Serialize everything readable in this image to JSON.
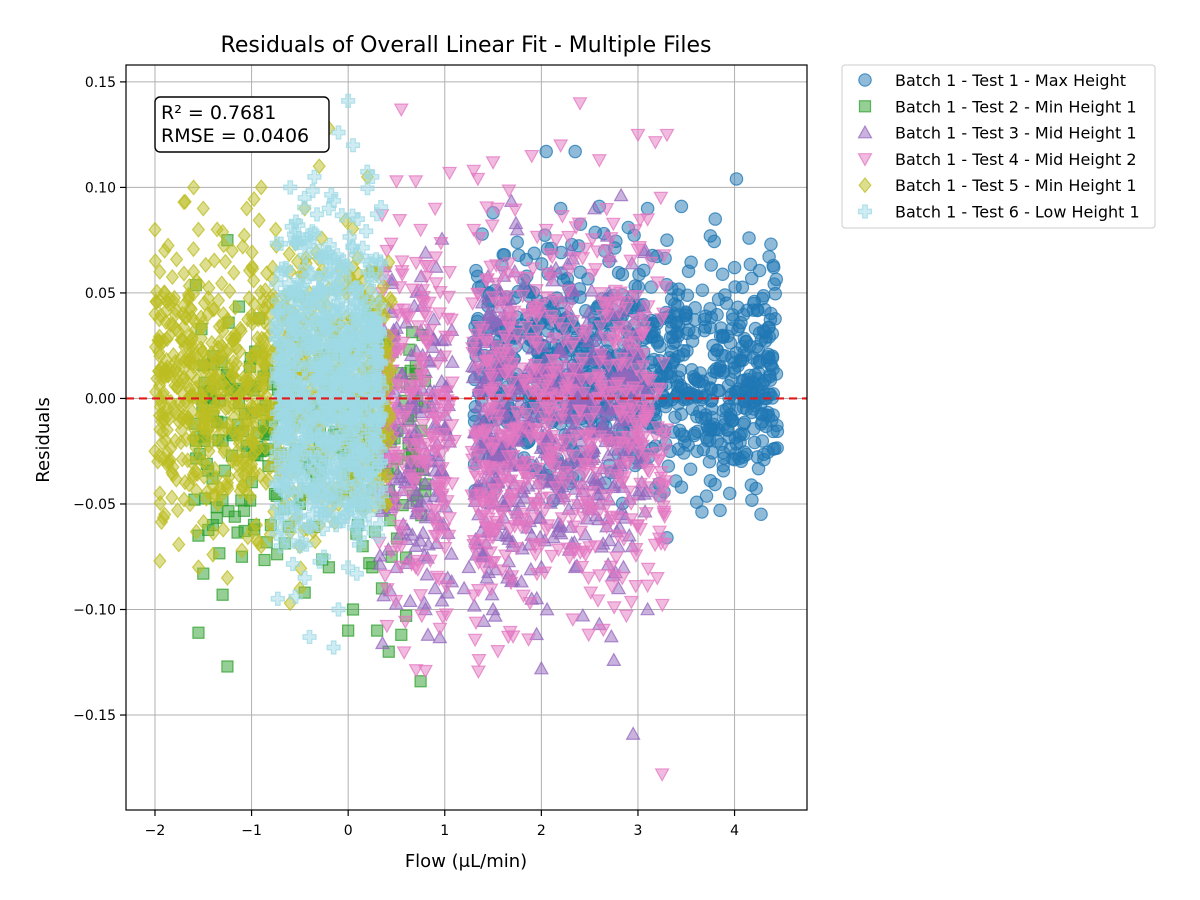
{
  "chart_data": {
    "type": "scatter",
    "title": "Residuals of Overall Linear Fit - Multiple Files",
    "xlabel": "Flow (μL/min)",
    "ylabel": "Residuals",
    "xlim": [
      -2.3,
      4.75
    ],
    "ylim": [
      -0.195,
      0.158
    ],
    "x_ticks": [
      -2,
      -1,
      0,
      1,
      2,
      3,
      4
    ],
    "x_tick_labels": [
      "−2",
      "−1",
      "0",
      "1",
      "2",
      "3",
      "4"
    ],
    "y_ticks": [
      0.15,
      0.1,
      0.05,
      0.0,
      -0.05,
      -0.1,
      -0.15
    ],
    "y_tick_labels": [
      "0.15",
      "0.10",
      "0.05",
      "0.00",
      "−0.05",
      "−0.10",
      "−0.15"
    ],
    "grid": true,
    "legend_position": "outside-top-right",
    "reference_line": {
      "y": 0,
      "color": "#e31a1c",
      "style": "dashed"
    },
    "annotation": {
      "r2": "R² = 0.7681",
      "rmse": "RMSE = 0.0406"
    },
    "series": [
      {
        "name": "Batch 1 - Test 1 - Max Height",
        "marker": "circle",
        "color": "#1f77b4",
        "x_range": [
          1.3,
          4.45
        ],
        "y_range": [
          -0.067,
          0.117
        ],
        "points": [
          [
            4.02,
            0.104
          ],
          [
            2.05,
            0.117
          ],
          [
            2.35,
            0.117
          ],
          [
            3.45,
            0.091
          ],
          [
            3.8,
            0.085
          ],
          [
            4.15,
            0.076
          ],
          [
            3.75,
            0.077
          ],
          [
            4.4,
            0.063
          ],
          [
            4.0,
            0.062
          ],
          [
            3.9,
            0.049
          ],
          [
            4.2,
            0.045
          ],
          [
            3.7,
            0.039
          ],
          [
            4.3,
            0.032
          ],
          [
            4.1,
            0.022
          ],
          [
            3.85,
            0.015
          ],
          [
            4.25,
            0.012
          ],
          [
            3.75,
            0.005
          ],
          [
            4.2,
            -0.005
          ],
          [
            3.72,
            -0.02
          ],
          [
            3.74,
            -0.03
          ],
          [
            3.75,
            -0.039
          ],
          [
            4.4,
            -0.024
          ],
          [
            4.0,
            -0.029
          ],
          [
            3.95,
            -0.045
          ],
          [
            3.85,
            -0.053
          ],
          [
            3.3,
            -0.066
          ],
          [
            3.45,
            -0.042
          ],
          [
            3.42,
            -0.024
          ],
          [
            3.45,
            0.005
          ],
          [
            3.42,
            0.02
          ],
          [
            3.4,
            0.036
          ],
          [
            3.35,
            0.052
          ],
          [
            3.1,
            0.09
          ],
          [
            3.3,
            0.075
          ],
          [
            2.9,
            0.081
          ],
          [
            2.7,
            0.065
          ],
          [
            2.6,
            0.091
          ],
          [
            2.2,
            0.09
          ],
          [
            2.75,
            0.042
          ],
          [
            3.0,
            0.03
          ],
          [
            2.9,
            0.02
          ],
          [
            1.5,
            0.088
          ],
          [
            1.75,
            0.074
          ],
          [
            2.4,
            0.048
          ],
          [
            2.25,
            0.02
          ]
        ]
      },
      {
        "name": "Batch 1 - Test 2 - Min Height 1",
        "marker": "square",
        "color": "#2ca02c",
        "x_range": [
          -1.6,
          0.8
        ],
        "y_range": [
          -0.135,
          0.075
        ],
        "points": [
          [
            -1.55,
            -0.111
          ],
          [
            -1.25,
            -0.127
          ],
          [
            0.75,
            -0.134
          ],
          [
            0.42,
            -0.12
          ],
          [
            -1.3,
            -0.093
          ],
          [
            -1.5,
            -0.083
          ],
          [
            -0.45,
            -0.092
          ],
          [
            0.0,
            -0.11
          ],
          [
            0.55,
            -0.112
          ],
          [
            0.6,
            -0.103
          ],
          [
            -1.55,
            -0.065
          ],
          [
            -1.4,
            -0.06
          ],
          [
            -1.3,
            -0.02
          ],
          [
            -1.4,
            0.02
          ],
          [
            -1.25,
            0.075
          ],
          [
            0.25,
            0.06
          ],
          [
            0.2,
            0.04
          ],
          [
            0.25,
            0.01
          ],
          [
            0.3,
            -0.03
          ],
          [
            0.15,
            -0.07
          ],
          [
            0.25,
            -0.08
          ],
          [
            0.35,
            -0.09
          ],
          [
            0.05,
            -0.1
          ],
          [
            0.45,
            -0.075
          ],
          [
            -0.5,
            -0.05
          ],
          [
            -1.1,
            -0.075
          ],
          [
            -0.8,
            -0.06
          ],
          [
            -0.2,
            -0.08
          ],
          [
            0.1,
            -0.06
          ],
          [
            0.3,
            -0.11
          ]
        ]
      },
      {
        "name": "Batch 1 - Test 3 - Mid Height 1",
        "marker": "triangle-up",
        "color": "#9467bd",
        "x_range": [
          0.3,
          3.1
        ],
        "y_range": [
          -0.16,
          0.1
        ],
        "points": [
          [
            2.95,
            -0.159
          ],
          [
            2.0,
            -0.128
          ],
          [
            2.75,
            -0.124
          ],
          [
            3.1,
            -0.1
          ],
          [
            2.6,
            -0.107
          ],
          [
            1.9,
            -0.095
          ],
          [
            1.5,
            -0.1
          ],
          [
            1.2,
            -0.09
          ],
          [
            0.8,
            -0.1
          ],
          [
            0.9,
            -0.09
          ],
          [
            2.35,
            -0.08
          ],
          [
            2.85,
            -0.08
          ],
          [
            1.7,
            -0.07
          ],
          [
            2.2,
            -0.06
          ],
          [
            2.6,
            -0.05
          ],
          [
            1.55,
            -0.04
          ],
          [
            1.85,
            -0.03
          ],
          [
            2.4,
            -0.02
          ],
          [
            2.9,
            -0.01
          ],
          [
            2.5,
            0.0
          ],
          [
            1.95,
            0.01
          ],
          [
            2.6,
            0.03
          ],
          [
            1.45,
            0.04
          ],
          [
            2.7,
            0.05
          ],
          [
            2.1,
            0.06
          ],
          [
            2.3,
            0.07
          ],
          [
            1.75,
            0.08
          ],
          [
            2.55,
            0.09
          ],
          [
            2.2,
            -0.045
          ],
          [
            1.35,
            -0.055
          ],
          [
            0.7,
            -0.07
          ],
          [
            0.5,
            -0.08
          ],
          [
            0.95,
            -0.06
          ],
          [
            0.45,
            -0.05
          ],
          [
            0.65,
            -0.03
          ],
          [
            3.05,
            -0.02
          ],
          [
            2.0,
            -0.08
          ],
          [
            1.25,
            -0.08
          ],
          [
            2.8,
            -0.09
          ],
          [
            1.65,
            -0.085
          ]
        ]
      },
      {
        "name": "Batch 1 - Test 4 - Mid Height 2",
        "marker": "triangle-down",
        "color": "#e377c2",
        "x_range": [
          0.3,
          3.3
        ],
        "y_range": [
          -0.178,
          0.14
        ],
        "points": [
          [
            3.25,
            -0.178
          ],
          [
            0.8,
            -0.129
          ],
          [
            0.95,
            -0.109
          ],
          [
            0.55,
            0.137
          ],
          [
            2.4,
            0.14
          ],
          [
            3.0,
            0.125
          ],
          [
            3.3,
            0.125
          ],
          [
            2.2,
            0.12
          ],
          [
            1.9,
            0.115
          ],
          [
            1.5,
            0.112
          ],
          [
            2.6,
            0.113
          ],
          [
            1.3,
            0.108
          ],
          [
            1.05,
            0.107
          ],
          [
            0.7,
            0.103
          ],
          [
            0.5,
            0.103
          ],
          [
            0.35,
            0.087
          ],
          [
            0.4,
            0.07
          ],
          [
            0.35,
            0.05
          ],
          [
            0.45,
            0.03
          ],
          [
            0.4,
            0.01
          ],
          [
            0.35,
            -0.01
          ],
          [
            0.5,
            -0.03
          ],
          [
            0.45,
            -0.05
          ],
          [
            0.55,
            -0.07
          ],
          [
            0.7,
            -0.08
          ],
          [
            0.9,
            -0.065
          ],
          [
            1.0,
            -0.04
          ],
          [
            1.1,
            -0.02
          ],
          [
            0.8,
            0.0
          ],
          [
            1.0,
            0.02
          ],
          [
            0.6,
            0.04
          ],
          [
            1.05,
            0.06
          ],
          [
            0.75,
            0.08
          ],
          [
            0.9,
            0.09
          ],
          [
            1.3,
            0.08
          ],
          [
            1.6,
            0.06
          ],
          [
            1.85,
            0.04
          ],
          [
            1.45,
            0.02
          ],
          [
            2.0,
            0.0
          ],
          [
            1.7,
            -0.02
          ],
          [
            2.25,
            -0.04
          ],
          [
            1.55,
            -0.06
          ],
          [
            2.05,
            0.08
          ],
          [
            2.7,
            0.065
          ],
          [
            3.1,
            0.085
          ],
          [
            3.0,
            -0.06
          ],
          [
            3.2,
            -0.085
          ],
          [
            2.9,
            -0.03
          ],
          [
            2.6,
            0.01
          ],
          [
            2.8,
            0.03
          ]
        ]
      },
      {
        "name": "Batch 1 - Test 5 - Min Height 1",
        "marker": "diamond",
        "color": "#bcbd22",
        "x_range": [
          -2.0,
          0.45
        ],
        "y_range": [
          -0.097,
          0.128
        ],
        "points": [
          [
            -1.35,
            0.123
          ],
          [
            -1.1,
            0.121
          ],
          [
            -0.95,
            0.127
          ],
          [
            -0.55,
            0.125
          ],
          [
            -0.2,
            0.128
          ],
          [
            -1.7,
            0.093
          ],
          [
            -1.5,
            0.09
          ],
          [
            -2.0,
            0.08
          ],
          [
            -1.9,
            0.07
          ],
          [
            -1.95,
            0.06
          ],
          [
            -1.9,
            0.05
          ],
          [
            -2.0,
            0.04
          ],
          [
            -1.85,
            0.03
          ],
          [
            -1.95,
            0.02
          ],
          [
            -1.9,
            0.01
          ],
          [
            -1.95,
            0.0
          ],
          [
            -1.9,
            -0.01
          ],
          [
            -2.0,
            -0.025
          ],
          [
            -1.85,
            -0.03
          ],
          [
            -1.95,
            -0.045
          ],
          [
            -1.9,
            -0.055
          ],
          [
            -1.95,
            -0.077
          ],
          [
            -1.55,
            -0.08
          ],
          [
            -1.4,
            -0.074
          ],
          [
            -1.25,
            -0.085
          ],
          [
            -1.1,
            -0.072
          ],
          [
            -0.9,
            -0.07
          ],
          [
            -0.6,
            -0.097
          ],
          [
            -0.5,
            -0.07
          ],
          [
            -0.3,
            -0.06
          ],
          [
            -0.1,
            -0.05
          ],
          [
            0.0,
            -0.03
          ],
          [
            -1.6,
            0.06
          ],
          [
            -1.45,
            0.04
          ],
          [
            -1.3,
            0.02
          ],
          [
            -1.15,
            0.0
          ],
          [
            -1.0,
            -0.02
          ],
          [
            -0.85,
            -0.04
          ],
          [
            -0.7,
            0.01
          ],
          [
            -0.55,
            0.03
          ],
          [
            -0.4,
            0.05
          ],
          [
            -1.5,
            -0.03
          ],
          [
            -1.35,
            -0.05
          ],
          [
            -1.2,
            0.07
          ],
          [
            -1.05,
            0.09
          ],
          [
            -0.9,
            0.1
          ],
          [
            -0.75,
            0.08
          ],
          [
            -0.6,
            0.06
          ],
          [
            -0.45,
            0.09
          ],
          [
            -0.3,
            0.11
          ],
          [
            -1.6,
            0.1
          ],
          [
            -1.45,
            -0.01
          ],
          [
            -1.25,
            -0.04
          ],
          [
            -0.95,
            -0.06
          ],
          [
            -0.65,
            -0.05
          ],
          [
            0.2,
            0.105
          ],
          [
            0.3,
            0.06
          ],
          [
            -1.7,
            0.01
          ],
          [
            -1.55,
            0.08
          ],
          [
            -0.8,
            0.04
          ]
        ]
      },
      {
        "name": "Batch 1 - Test 6 - Low Height 1",
        "marker": "plus",
        "color": "#9edae5",
        "x_range": [
          -0.75,
          0.35
        ],
        "y_range": [
          -0.118,
          0.141
        ],
        "points": [
          [
            0.0,
            0.141
          ],
          [
            -0.1,
            0.126
          ],
          [
            0.05,
            0.12
          ],
          [
            -0.35,
            0.105
          ],
          [
            0.25,
            0.105
          ],
          [
            -0.6,
            0.1
          ],
          [
            -0.45,
            0.095
          ],
          [
            -0.2,
            0.09
          ],
          [
            0.1,
            0.085
          ],
          [
            -0.55,
            0.075
          ],
          [
            -0.3,
            0.07
          ],
          [
            -0.05,
            0.065
          ],
          [
            0.2,
            0.06
          ],
          [
            -0.65,
            0.05
          ],
          [
            -0.4,
            0.045
          ],
          [
            -0.15,
            0.04
          ],
          [
            0.1,
            0.035
          ],
          [
            -0.6,
            0.025
          ],
          [
            -0.35,
            0.02
          ],
          [
            -0.1,
            0.015
          ],
          [
            0.15,
            0.01
          ],
          [
            -0.7,
            0.0
          ],
          [
            -0.45,
            -0.005
          ],
          [
            -0.2,
            -0.01
          ],
          [
            0.05,
            -0.015
          ],
          [
            -0.55,
            -0.025
          ],
          [
            -0.3,
            -0.03
          ],
          [
            -0.05,
            -0.035
          ],
          [
            0.2,
            -0.04
          ],
          [
            -0.65,
            -0.045
          ],
          [
            -0.4,
            -0.05
          ],
          [
            -0.15,
            -0.055
          ],
          [
            0.1,
            -0.06
          ],
          [
            -0.5,
            -0.07
          ],
          [
            -0.25,
            -0.075
          ],
          [
            0.0,
            -0.08
          ],
          [
            -0.45,
            -0.085
          ],
          [
            -0.1,
            -0.1
          ],
          [
            -0.4,
            -0.113
          ],
          [
            -0.15,
            -0.118
          ]
        ]
      }
    ]
  }
}
